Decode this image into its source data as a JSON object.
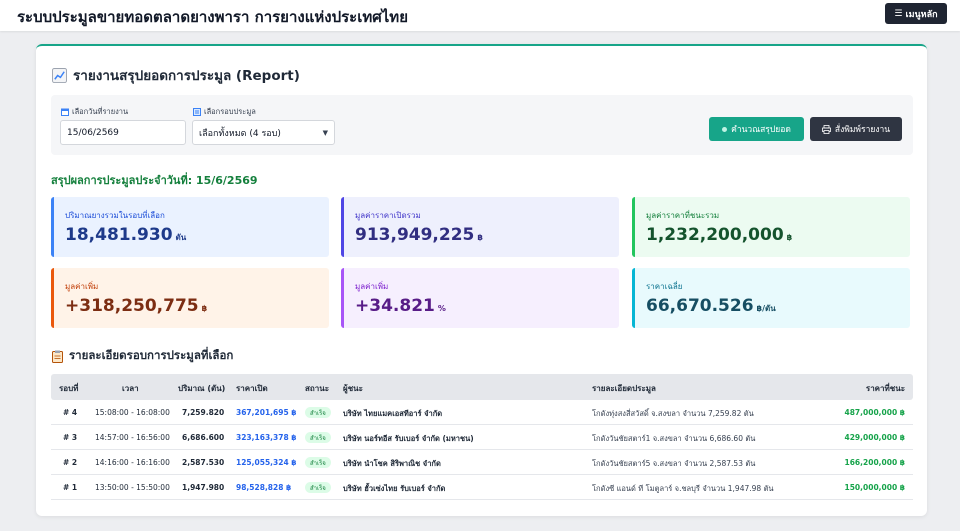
{
  "header": {
    "title": "ระบบประมูลขายทอดตลาดยางพารา การยางแห่งประเทศไทย",
    "menu_label": "เมนูหลัก"
  },
  "report": {
    "title": "รายงานสรุปยอดการประมูล (Report)",
    "filters": {
      "date_label": "เลือกวันที่รายงาน",
      "date_value": "15/06/2569",
      "round_label": "เลือกรอบประมูล",
      "round_value": "เลือกทั้งหมด (4 รอบ)"
    },
    "calc_button": "คำนวณสรุปยอด",
    "print_button": "สั่งพิมพ์รายงาน",
    "summary_heading": "สรุปผลการประมูลประจำวันที่: 15/6/2569",
    "stats": [
      {
        "label": "ปริมาณยางรวมในรอบที่เลือก",
        "value": "18,481.930",
        "unit": "ตัน",
        "accent": "#3b82f6",
        "bg": "#eaf2ff",
        "label_color": "#1d4ed8",
        "value_color": "#1e3a8a"
      },
      {
        "label": "มูลค่าราคาเปิดรวม",
        "value": "913,949,225",
        "unit": "฿",
        "accent": "#4f46e5",
        "bg": "#eef0fd",
        "label_color": "#4338ca",
        "value_color": "#312e81"
      },
      {
        "label": "มูลค่าราคาที่ชนะรวม",
        "value": "1,232,200,000",
        "unit": "฿",
        "accent": "#22c55e",
        "bg": "#ecfbf1",
        "label_color": "#15803d",
        "value_color": "#14532d"
      },
      {
        "label": "มูลค่าเพิ่ม",
        "value": "+318,250,775",
        "unit": "฿",
        "accent": "#ea580c",
        "bg": "#fff3e8",
        "label_color": "#c2410c",
        "value_color": "#7c2d12"
      },
      {
        "label": "มูลค่าเพิ่ม",
        "value": "+34.821",
        "unit": "%",
        "accent": "#a855f7",
        "bg": "#f6effe",
        "label_color": "#7e22ce",
        "value_color": "#581c87"
      },
      {
        "label": "ราคาเฉลี่ย",
        "value": "66,670.526",
        "unit": "฿/ตัน",
        "accent": "#06b6d4",
        "bg": "#e8fafd",
        "label_color": "#0e7490",
        "value_color": "#164e63"
      }
    ],
    "detail_heading": "รายละเอียดรอบการประมูลที่เลือก",
    "table": {
      "headers": [
        "รอบที่",
        "เวลา",
        "ปริมาณ (ตัน)",
        "ราคาเปิด",
        "สถานะ",
        "ผู้ชนะ",
        "รายละเอียดประมูล",
        "ราคาที่ชนะ"
      ],
      "rows": [
        {
          "round": "# 4",
          "time": "15:08:00 - 16:08:00",
          "qty": "7,259.820",
          "open": "367,201,695 ฿",
          "status": "สำเร็จ",
          "winner": "บริษัท ไทยแมคเอสทีอาร์ จำกัด",
          "detail": "โกดังทุ่งสงสี่สวัสดิ์ จ.สงขลา จำนวน 7,259.82 ตัน",
          "win": "487,000,000 ฿"
        },
        {
          "round": "# 3",
          "time": "14:57:00 - 16:56:00",
          "qty": "6,686.600",
          "open": "323,163,378 ฿",
          "status": "สำเร็จ",
          "winner": "บริษัท นอร์ทอีส รับเบอร์ จำกัด (มหาชน)",
          "detail": "โกดังวันชัยสตาร์1 จ.สงขลา จำนวน 6,686.60 ตัน",
          "win": "429,000,000 ฿"
        },
        {
          "round": "# 2",
          "time": "14:16:00 - 16:16:00",
          "qty": "2,587.530",
          "open": "125,055,324 ฿",
          "status": "สำเร็จ",
          "winner": "บริษัท นำโชค สิริพาณิช จำกัด",
          "detail": "โกดังวันชัยสตาร์5 จ.สงขลา จำนวน 2,587.53 ตัน",
          "win": "166,200,000 ฿"
        },
        {
          "round": "# 1",
          "time": "13:50:00 - 15:50:00",
          "qty": "1,947.980",
          "open": "98,528,828 ฿",
          "status": "สำเร็จ",
          "winner": "บริษัท ฮั้วเซ่งไทย รับเบอร์ จำกัด",
          "detail": "โกดังซี แอนด์ ที โมตูลาร์ จ.ชลบุรี จำนวน 1,947.98 ตัน",
          "win": "150,000,000 ฿"
        }
      ]
    }
  }
}
